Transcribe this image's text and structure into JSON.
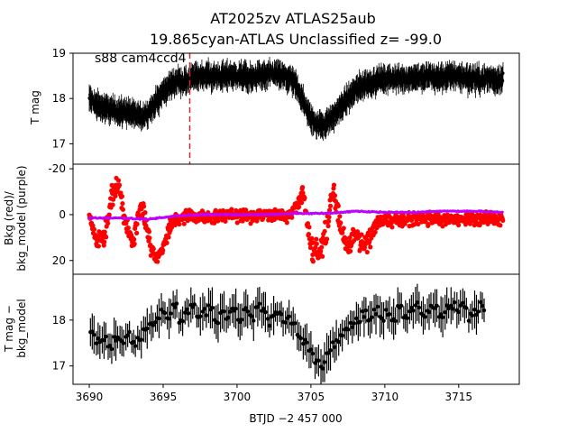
{
  "figure": {
    "title_line1": "AT2025zv  ATLAS25aub",
    "title_line2": "19.865cyan-ATLAS Unclassified z= -99.0",
    "annotation": "s88 cam4ccd4",
    "xlabel": "BTJD −2 457 000",
    "marker_btjd": 3696.8,
    "colors": {
      "data": "#000000",
      "bkg": "#ff0000",
      "bkg_model": "#bf00ff",
      "marker": "#d62728"
    }
  },
  "chart_data": [
    {
      "type": "scatter",
      "panel": "top",
      "ylabel": "T mag",
      "y_inverted": true,
      "xlim": [
        3688.9,
        3719.1
      ],
      "ylim": [
        19.0,
        16.55
      ],
      "xticks": [
        3690,
        3695,
        3700,
        3705,
        3710,
        3715
      ],
      "yticks": [
        17,
        18,
        19
      ],
      "error_bars": true,
      "series": [
        {
          "x": [
            3690.0,
            3690.5,
            3691.0,
            3691.5,
            3692.0,
            3692.5,
            3693.0,
            3693.5,
            3694.0,
            3694.5,
            3695.0,
            3695.5,
            3696.0,
            3696.5,
            3697.0,
            3697.5,
            3698.0,
            3698.5,
            3699.0,
            3699.5,
            3700.0,
            3700.5,
            3701.0,
            3701.5,
            3702.0,
            3702.5,
            3703.0,
            3703.5,
            3704.0,
            3704.5,
            3705.0,
            3705.5,
            3706.0,
            3706.5,
            3707.0,
            3707.5,
            3708.0,
            3708.5,
            3709.0,
            3709.5,
            3710.0,
            3710.5,
            3711.0,
            3711.5,
            3712.0,
            3712.5,
            3713.0,
            3713.5,
            3714.0,
            3714.5,
            3715.0,
            3715.5,
            3716.0,
            3716.5,
            3717.0,
            3717.5,
            3718.0
          ],
          "y": [
            18.0,
            17.85,
            17.8,
            17.75,
            17.7,
            17.72,
            17.65,
            17.6,
            17.7,
            17.9,
            18.15,
            18.3,
            18.4,
            18.35,
            18.45,
            18.5,
            18.5,
            18.48,
            18.5,
            18.52,
            18.5,
            18.5,
            18.45,
            18.5,
            18.5,
            18.55,
            18.5,
            18.45,
            18.3,
            17.9,
            17.55,
            17.4,
            17.45,
            17.6,
            17.8,
            18.0,
            18.2,
            18.3,
            18.35,
            18.4,
            18.42,
            18.45,
            18.42,
            18.45,
            18.48,
            18.45,
            18.5,
            18.45,
            18.48,
            18.5,
            18.5,
            18.45,
            18.45,
            18.42,
            18.45,
            18.42,
            18.45
          ]
        }
      ]
    },
    {
      "type": "scatter",
      "panel": "middle",
      "ylabel": "Bkg (red)/\nbkg_model (purple)",
      "xlim": [
        3688.9,
        3719.1
      ],
      "ylim": [
        -22,
        26
      ],
      "yticks": [
        -20,
        0,
        20
      ],
      "series": [
        {
          "x": [
            3690.0,
            3690.5,
            3691.0,
            3691.5,
            3692.0,
            3692.5,
            3693.0,
            3693.5,
            3694.0,
            3694.5,
            3695.0,
            3695.5,
            3696.0,
            3696.5,
            3697.0,
            3697.5,
            3698.0,
            3698.5,
            3699.0,
            3699.5,
            3700.0,
            3700.5,
            3701.0,
            3701.5,
            3702.0,
            3702.5,
            3703.0,
            3703.5,
            3704.0,
            3704.5,
            3705.0,
            3705.5,
            3706.0,
            3706.5,
            3707.0,
            3707.5,
            3708.0,
            3708.5,
            3709.0,
            3709.5,
            3710.0,
            3710.5,
            3711.0,
            3711.5,
            3712.0,
            3712.5,
            3713.0,
            3713.5,
            3714.0,
            3714.5,
            3715.0,
            3715.5,
            3716.0,
            3716.5,
            3717.0,
            3717.5,
            3718.0
          ],
          "y": [
            0,
            12,
            10,
            -8,
            -14,
            5,
            12,
            -5,
            10,
            20,
            15,
            3,
            2,
            1,
            1,
            0.5,
            1,
            0.5,
            0.5,
            1,
            0.5,
            0.5,
            0.5,
            0.5,
            0.5,
            0.5,
            0.5,
            0,
            -3,
            -10,
            15,
            18,
            10,
            -12,
            5,
            15,
            8,
            12,
            10,
            3,
            2,
            2,
            2,
            2,
            2,
            2,
            1.5,
            2,
            2,
            1.5,
            2,
            2,
            2,
            1.5,
            2,
            2,
            2
          ],
          "spread": [
            3,
            6,
            6,
            6,
            6,
            6,
            6,
            6,
            6,
            5,
            5,
            5,
            4,
            4,
            4,
            4,
            4,
            4,
            4,
            4,
            4,
            4,
            4,
            4,
            4,
            4,
            4,
            4,
            5,
            6,
            8,
            9,
            9,
            8,
            7,
            8,
            8,
            7,
            7,
            5,
            4,
            4,
            4,
            4,
            4,
            4,
            4,
            4,
            4,
            4,
            4,
            4,
            4,
            4,
            4,
            4,
            4
          ]
        },
        {
          "x": [
            3690.0,
            3692.0,
            3694.0,
            3696.0,
            3698.0,
            3700.0,
            3702.0,
            3704.0,
            3706.0,
            3708.0,
            3710.0,
            3712.0,
            3714.0,
            3716.0,
            3718.0
          ],
          "y": [
            1.5,
            1.5,
            2.0,
            0.5,
            0.0,
            0.0,
            0.0,
            -0.5,
            -0.5,
            -1.5,
            -1.0,
            -1.0,
            -1.5,
            -1.5,
            -1.0
          ]
        }
      ]
    },
    {
      "type": "scatter",
      "panel": "bottom",
      "ylabel": "T mag −\nbkg_model",
      "y_inverted": true,
      "xlim": [
        3688.9,
        3719.1
      ],
      "ylim": [
        19.0,
        16.6
      ],
      "yticks": [
        17,
        18
      ],
      "error_bars": true,
      "series": [
        {
          "x": [
            3690.2,
            3690.6,
            3691.0,
            3691.4,
            3691.8,
            3692.2,
            3692.6,
            3693.0,
            3693.4,
            3693.8,
            3694.2,
            3694.6,
            3695.0,
            3695.4,
            3695.8,
            3696.2,
            3696.6,
            3697.0,
            3697.4,
            3697.8,
            3698.2,
            3698.6,
            3699.0,
            3699.4,
            3699.8,
            3700.2,
            3700.6,
            3701.0,
            3701.4,
            3701.8,
            3702.2,
            3702.6,
            3703.0,
            3703.4,
            3703.8,
            3704.2,
            3704.6,
            3705.0,
            3705.4,
            3705.8,
            3706.2,
            3706.6,
            3707.0,
            3707.4,
            3707.8,
            3708.2,
            3708.6,
            3709.0,
            3709.4,
            3709.8,
            3710.2,
            3710.6,
            3711.0,
            3711.4,
            3711.8,
            3712.2,
            3712.6,
            3713.0,
            3713.4,
            3713.8,
            3714.2,
            3714.6,
            3715.0,
            3715.4,
            3715.8,
            3716.2,
            3716.6
          ],
          "y": [
            17.7,
            17.5,
            17.6,
            17.4,
            17.6,
            17.5,
            17.7,
            17.5,
            17.6,
            17.8,
            17.9,
            18.0,
            18.2,
            18.1,
            18.3,
            18.0,
            18.2,
            18.3,
            18.1,
            18.2,
            18.3,
            18.0,
            18.2,
            18.1,
            18.3,
            18.0,
            18.2,
            18.1,
            18.3,
            18.2,
            18.0,
            18.2,
            18.1,
            18.0,
            17.9,
            17.7,
            17.5,
            17.3,
            17.1,
            17.0,
            17.3,
            17.5,
            17.6,
            17.8,
            17.9,
            18.0,
            18.1,
            18.0,
            18.2,
            18.1,
            18.2,
            18.0,
            18.3,
            18.1,
            18.2,
            18.3,
            18.1,
            18.2,
            18.3,
            18.1,
            18.2,
            18.3,
            18.2,
            18.3,
            18.1,
            18.2,
            18.3
          ]
        }
      ]
    }
  ]
}
